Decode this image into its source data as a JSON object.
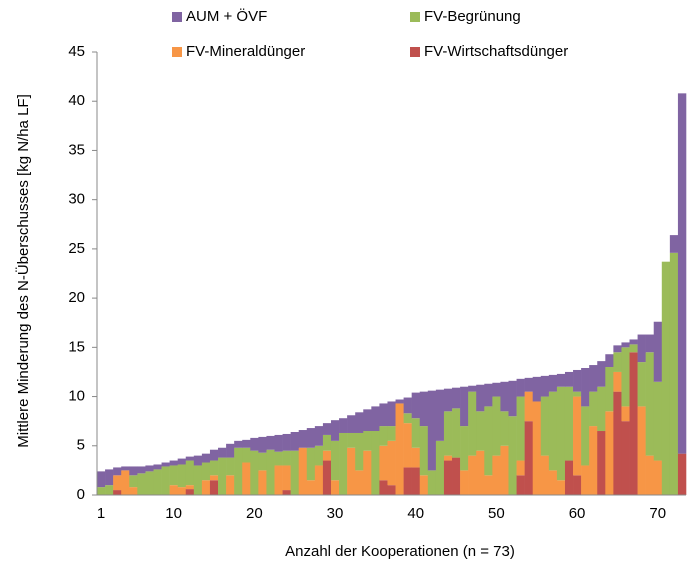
{
  "chart_data": {
    "type": "stacked_bar",
    "x_label": "Anzahl der Kooperationen (n = 73)",
    "y_label": "Mittlere Minderung des N-Überschusses [kg N/ha LF]",
    "x": [
      1,
      2,
      3,
      4,
      5,
      6,
      7,
      8,
      9,
      10,
      11,
      12,
      13,
      14,
      15,
      16,
      17,
      18,
      19,
      20,
      21,
      22,
      23,
      24,
      25,
      26,
      27,
      28,
      29,
      30,
      31,
      32,
      33,
      34,
      35,
      36,
      37,
      38,
      39,
      40,
      41,
      42,
      43,
      44,
      45,
      46,
      47,
      48,
      49,
      50,
      51,
      52,
      53,
      54,
      55,
      56,
      57,
      58,
      59,
      60,
      61,
      62,
      63,
      64,
      65,
      66,
      67,
      68,
      69,
      70,
      71,
      72,
      73
    ],
    "xlim": [
      0.5,
      73.5
    ],
    "xticks": [
      1,
      10,
      20,
      30,
      40,
      50,
      60,
      70
    ],
    "ylim": [
      0,
      45
    ],
    "yticks": [
      0,
      5,
      10,
      15,
      20,
      25,
      30,
      35,
      40,
      45
    ],
    "grid": false,
    "legend": "top",
    "series": [
      {
        "name": "AUM + ÖVF",
        "color": "#8064a2",
        "values": [
          1.6,
          1.6,
          0.8,
          0.4,
          0.9,
          0.7,
          0.6,
          0.5,
          0.4,
          0.5,
          0.6,
          0.4,
          1.0,
          0.9,
          1.1,
          1.0,
          1.4,
          0.7,
          0.8,
          1.3,
          1.6,
          1.4,
          1.7,
          1.7,
          1.9,
          1.8,
          2.0,
          2.0,
          1.2,
          2.1,
          1.5,
          1.8,
          2.1,
          2.2,
          2.5,
          2.3,
          2.5,
          0.4,
          1.6,
          2.6,
          3.5,
          8.1,
          5.2,
          2.3,
          2.1,
          4.0,
          0.6,
          2.7,
          2.3,
          1.4,
          3.0,
          3.6,
          1.8,
          1.4,
          2.5,
          2.1,
          1.7,
          1.3,
          1.5,
          2.2,
          3.9,
          2.7,
          2.6,
          1.3,
          0.7,
          0.5,
          0.5,
          2.8,
          1.8,
          6.1,
          0,
          1.8,
          36.6
        ]
      },
      {
        "name": "FV-Begrünung",
        "color": "#9bbb59",
        "values": [
          0.8,
          1.0,
          0,
          0,
          1.2,
          2.2,
          2.4,
          2.6,
          2.9,
          2.0,
          2.3,
          2.5,
          3.0,
          1.8,
          1.5,
          3.8,
          1.8,
          4.8,
          1.5,
          4.5,
          1.8,
          4.6,
          1.4,
          1.5,
          4.5,
          0,
          3.3,
          2.0,
          1.6,
          4.0,
          6.3,
          1.5,
          3.8,
          2.0,
          6.5,
          2.0,
          1.5,
          0,
          1.0,
          3.0,
          5.0,
          2.5,
          5.5,
          4.5,
          5.0,
          4.5,
          6.5,
          4.0,
          7.0,
          6.0,
          3.5,
          8.0,
          6.5,
          0,
          0,
          6.0,
          8.0,
          9.5,
          7.5,
          0.5,
          6.0,
          3.5,
          4.5,
          4.5,
          2.0,
          6.0,
          0.8,
          4.5,
          10.5,
          8.0,
          23.7,
          24.6,
          0
        ]
      },
      {
        "name": "FV-Mineraldünger",
        "color": "#f79646",
        "values": [
          0,
          0,
          1.5,
          2.5,
          0.8,
          0,
          0,
          0,
          0,
          1.0,
          0.8,
          0.4,
          0,
          1.5,
          0.5,
          0,
          2.0,
          0,
          3.3,
          0,
          2.5,
          0,
          3.0,
          2.5,
          0,
          4.8,
          1.5,
          3.0,
          1.0,
          1.5,
          0,
          4.8,
          2.5,
          4.5,
          0,
          3.5,
          4.5,
          9.3,
          4.5,
          2.0,
          2.0,
          0,
          0,
          0.5,
          0,
          2.5,
          4.0,
          4.5,
          2.0,
          4.0,
          5.0,
          0,
          1.5,
          3.0,
          9.5,
          4.0,
          2.5,
          1.5,
          0,
          8.0,
          3.0,
          7.0,
          0,
          8.5,
          2.0,
          1.5,
          0,
          9.0,
          4.0,
          3.5,
          0,
          0,
          0
        ]
      },
      {
        "name": "FV-Wirtschaftsdünger",
        "color": "#c0504d",
        "values": [
          0,
          0,
          0.5,
          0,
          0,
          0,
          0,
          0,
          0,
          0,
          0,
          0.6,
          0,
          0,
          1.5,
          0,
          0,
          0,
          0,
          0,
          0,
          0,
          0,
          0.5,
          0,
          0,
          0,
          0,
          3.5,
          0,
          0,
          0,
          0,
          0,
          0,
          1.5,
          1.0,
          0,
          2.8,
          2.8,
          0,
          0,
          0,
          3.5,
          3.8,
          0,
          0,
          0,
          0,
          0,
          0,
          0,
          2.0,
          7.5,
          0,
          0,
          0,
          0,
          3.5,
          2.0,
          0,
          0,
          6.5,
          0,
          10.5,
          7.5,
          14.5,
          0,
          0,
          0,
          0,
          0,
          4.2
        ]
      }
    ]
  }
}
